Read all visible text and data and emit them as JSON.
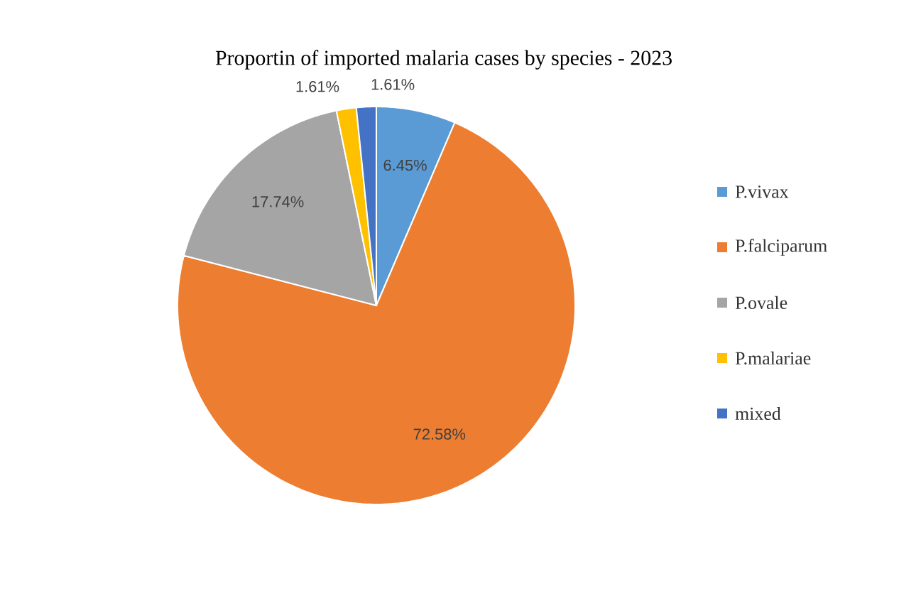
{
  "chart_data": {
    "type": "pie",
    "title": "Proportin of imported malaria cases by species - 2023",
    "categories": [
      "P.vivax",
      "P.falciparum",
      "P.ovale",
      "P.malariae",
      "mixed"
    ],
    "values": [
      6.45,
      72.58,
      17.74,
      1.61,
      1.61
    ],
    "colors": [
      "#5b9bd5",
      "#ed7d31",
      "#a5a5a5",
      "#ffc000",
      "#4472c4"
    ],
    "value_labels": [
      "6.45%",
      "72.58%",
      "17.74%",
      "1.61%",
      "1.61%"
    ],
    "legend": "right"
  }
}
